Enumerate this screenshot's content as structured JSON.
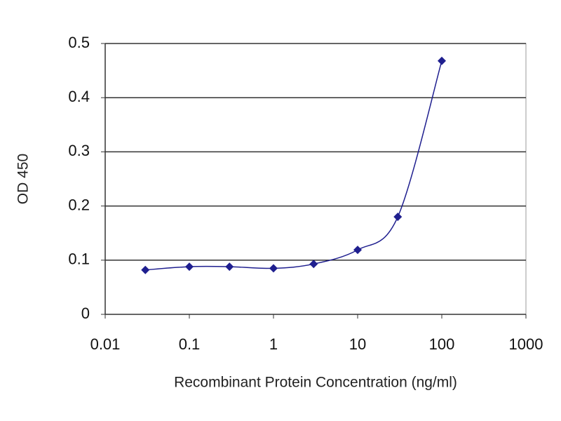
{
  "chart_data": {
    "type": "line",
    "x_label": "Recombinant Protein Concentration (ng/ml)",
    "y_label": "OD 450",
    "x": [
      0.03,
      0.1,
      0.3,
      1,
      3,
      10,
      30,
      100
    ],
    "series": [
      {
        "color": "#1f1f8f",
        "values": [
          0.082,
          0.088,
          0.088,
          0.085,
          0.093,
          0.119,
          0.18,
          0.468
        ]
      }
    ],
    "xlim": [
      0.01,
      1000
    ],
    "xticks": [
      0.01,
      0.1,
      1,
      10,
      100,
      1000
    ],
    "xscale": "log",
    "ylim": [
      0,
      0.5
    ],
    "yticks": [
      0,
      0.1,
      0.2,
      0.3,
      0.4,
      0.5
    ],
    "grid": true
  }
}
